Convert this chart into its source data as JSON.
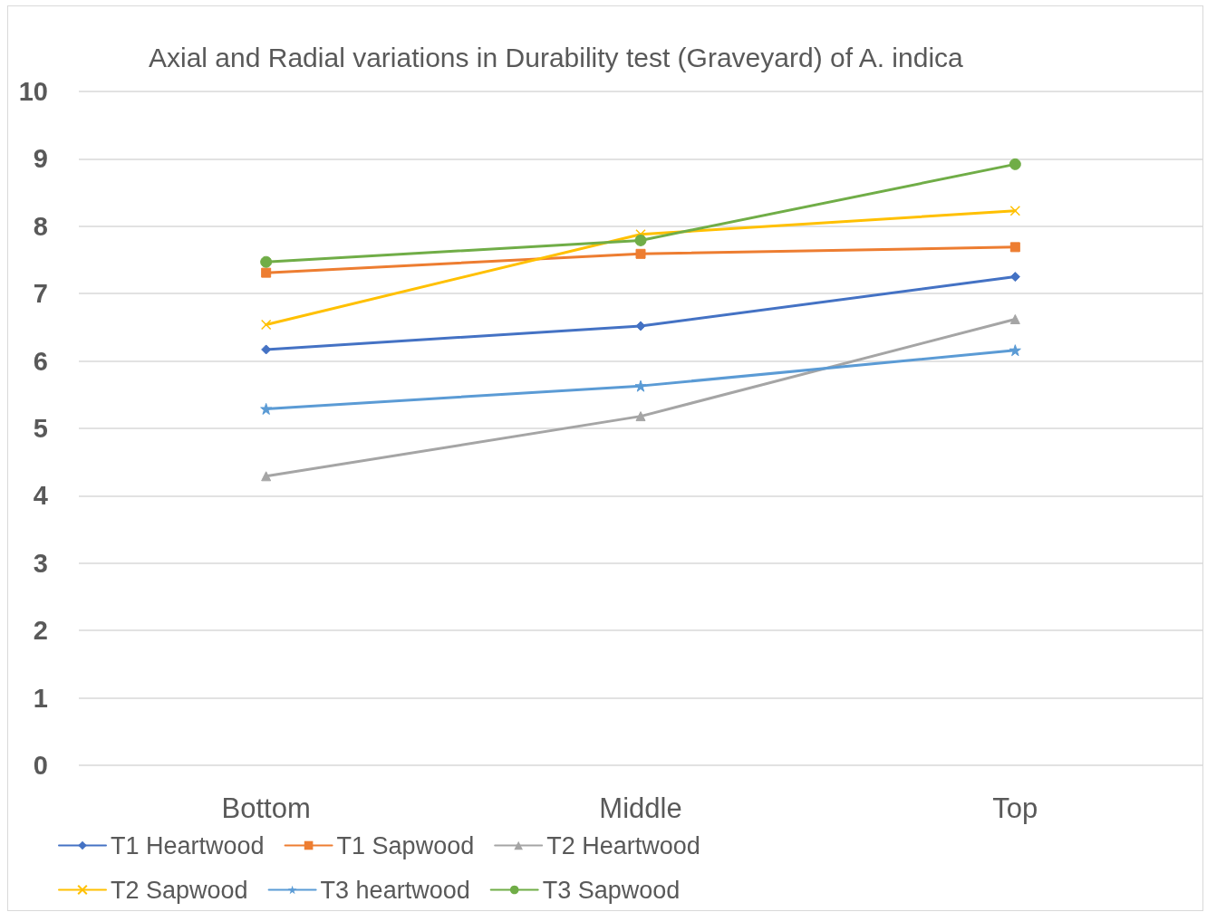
{
  "chart_data": {
    "type": "line",
    "title": "Axial and Radial variations in Durability test (Graveyard) of A. indica",
    "categories": [
      "Bottom",
      "Middle",
      "Top"
    ],
    "series": [
      {
        "name": "T1 Heartwood",
        "color": "#4472c4",
        "marker": "diamond",
        "values": [
          6.17,
          6.52,
          7.25
        ]
      },
      {
        "name": "T1 Sapwood",
        "color": "#ed7d31",
        "marker": "square",
        "values": [
          7.31,
          7.59,
          7.69
        ]
      },
      {
        "name": "T2 Heartwood",
        "color": "#a5a5a5",
        "marker": "triangle",
        "values": [
          4.29,
          5.18,
          6.62
        ]
      },
      {
        "name": "T2 Sapwood",
        "color": "#ffc000",
        "marker": "cross",
        "values": [
          6.54,
          7.88,
          8.23
        ]
      },
      {
        "name": "T3 heartwood",
        "color": "#5b9bd5",
        "marker": "star",
        "values": [
          5.29,
          5.63,
          6.16
        ]
      },
      {
        "name": "T3 Sapwood",
        "color": "#70ad47",
        "marker": "circle",
        "values": [
          7.47,
          7.79,
          8.92
        ]
      }
    ],
    "ylim": [
      0,
      10
    ],
    "yticks": [
      0,
      1,
      2,
      3,
      4,
      5,
      6,
      7,
      8,
      9,
      10
    ],
    "grid": "y",
    "legend": "bottom",
    "line_style": "solid"
  }
}
